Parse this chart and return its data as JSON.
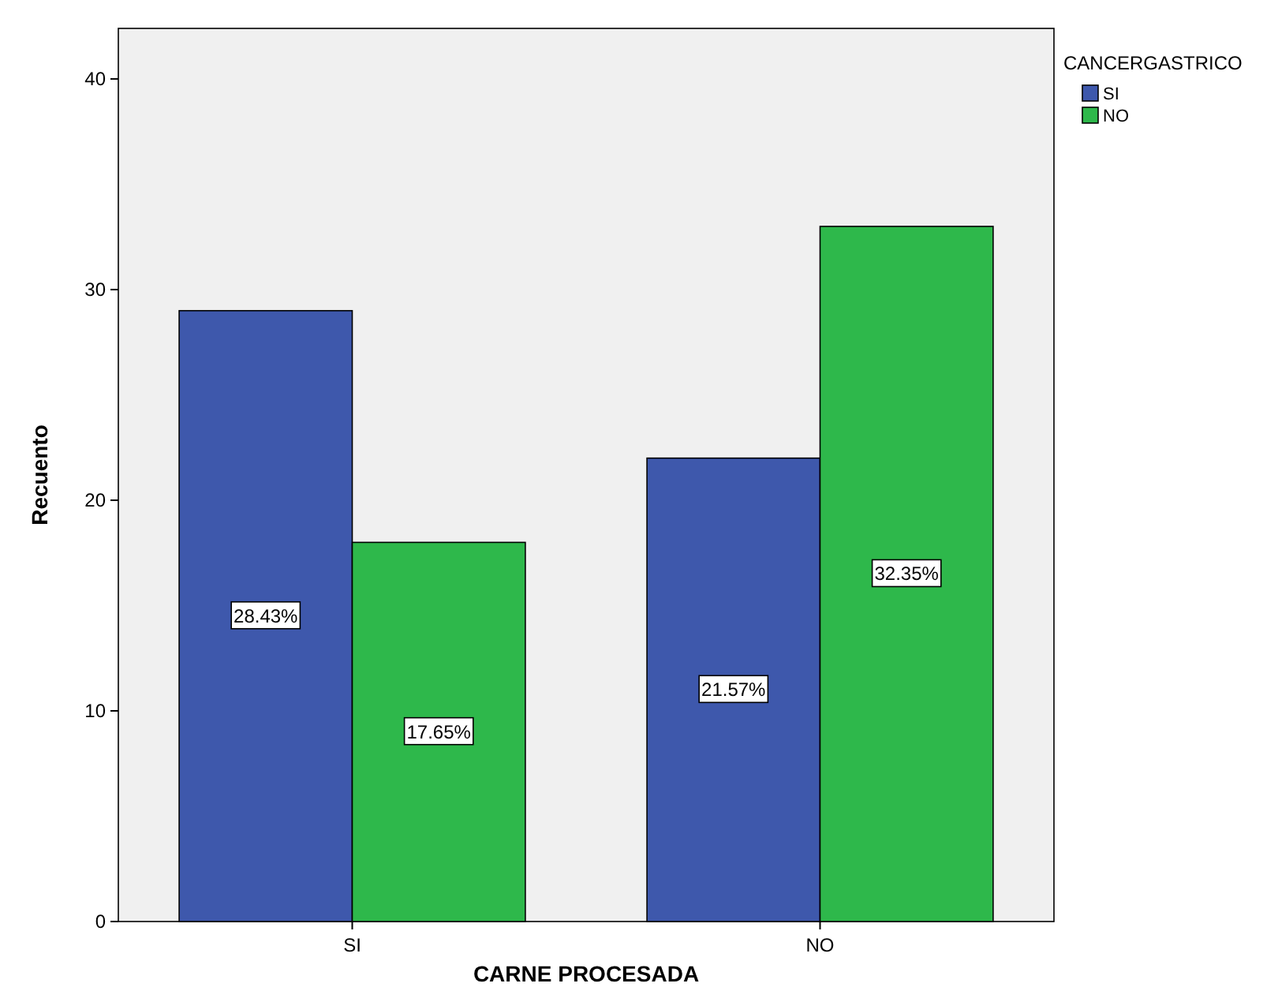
{
  "chart_data": {
    "type": "bar",
    "xlabel": "CARNE PROCESADA",
    "ylabel": "Recuento",
    "legend_title": "CANCERGASTRICO",
    "categories": [
      "SI",
      "NO"
    ],
    "series": [
      {
        "name": "SI",
        "color": "#3e58ac",
        "values": [
          29,
          22
        ]
      },
      {
        "name": "NO",
        "color": "#2eb84b",
        "values": [
          18,
          33
        ]
      }
    ],
    "annotations": [
      "28.43%",
      "21.57%",
      "17.65%",
      "32.35%"
    ],
    "ylim": [
      0,
      42.4
    ],
    "yticks": [
      0,
      10,
      20,
      30,
      40
    ],
    "grid": false,
    "legend": "top right"
  }
}
